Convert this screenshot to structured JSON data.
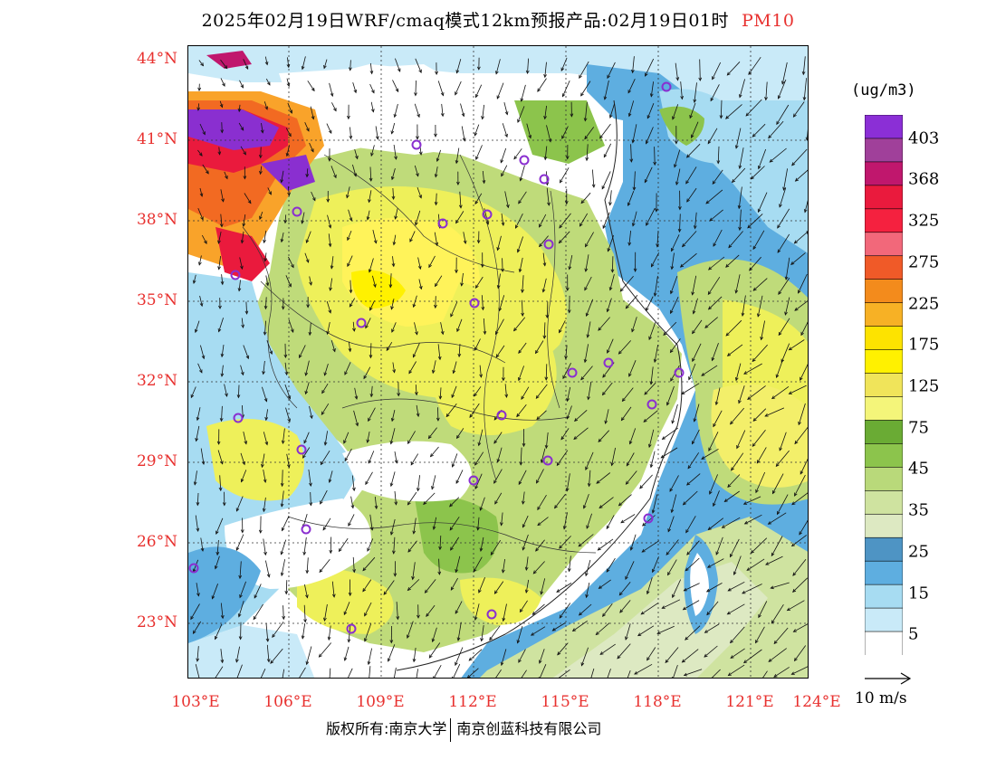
{
  "title": {
    "text": "2025年02月19日WRF/cmaq模式12km预报产品:02月19日01时",
    "variable": "PM10"
  },
  "map": {
    "lat_labels": [
      "44°N",
      "41°N",
      "38°N",
      "35°N",
      "32°N",
      "29°N",
      "26°N",
      "23°N"
    ],
    "lon_labels": [
      "103°E",
      "106°E",
      "109°E",
      "112°E",
      "115°E",
      "118°E",
      "121°E",
      "124°E"
    ],
    "field_colors": {
      "sea_clean": "#ffffff",
      "c5": "#dbeff9",
      "c15": "#a7dcf2",
      "c25": "#5eaee0",
      "c25b": "#4e94c4",
      "c35": "#dce8b6",
      "c45": "#bfdb7a",
      "c55": "#8cc44c",
      "c75": "#eef05a",
      "c125": "#fff100",
      "c175": "#f9a32a",
      "c225": "#f26a22",
      "c275": "#f2687a",
      "c325": "#ea1a3d",
      "c368": "#c0176d",
      "c403": "#8a2fd0"
    },
    "station_marker": "circle-marker",
    "wind_arrow": "wind-arrow-icon"
  },
  "legend": {
    "unit": "(ug/m3)",
    "labels": [
      "403",
      "368",
      "325",
      "275",
      "225",
      "175",
      "125",
      "75",
      "45",
      "35",
      "25",
      "15",
      "5"
    ],
    "colors": [
      "#8b2fd6",
      "#a0409a",
      "#c0176d",
      "#ea1a3d",
      "#f5213f",
      "#f2687a",
      "#f05a28",
      "#f38b1c",
      "#f7b125",
      "#fde300",
      "#fff100",
      "#f0e45a",
      "#f4f57a",
      "#6aab34",
      "#8cc44c",
      "#b9d97a",
      "#cfe3a0",
      "#dde9c2",
      "#4e94c4",
      "#5eaee0",
      "#a7dcf2",
      "#c9eaf8",
      "#ffffff"
    ],
    "scale_label": "10  m/s"
  },
  "footer": {
    "copyright_left": "版权所有:南京大学",
    "copyright_right": "南京创蓝科技有限公司"
  }
}
